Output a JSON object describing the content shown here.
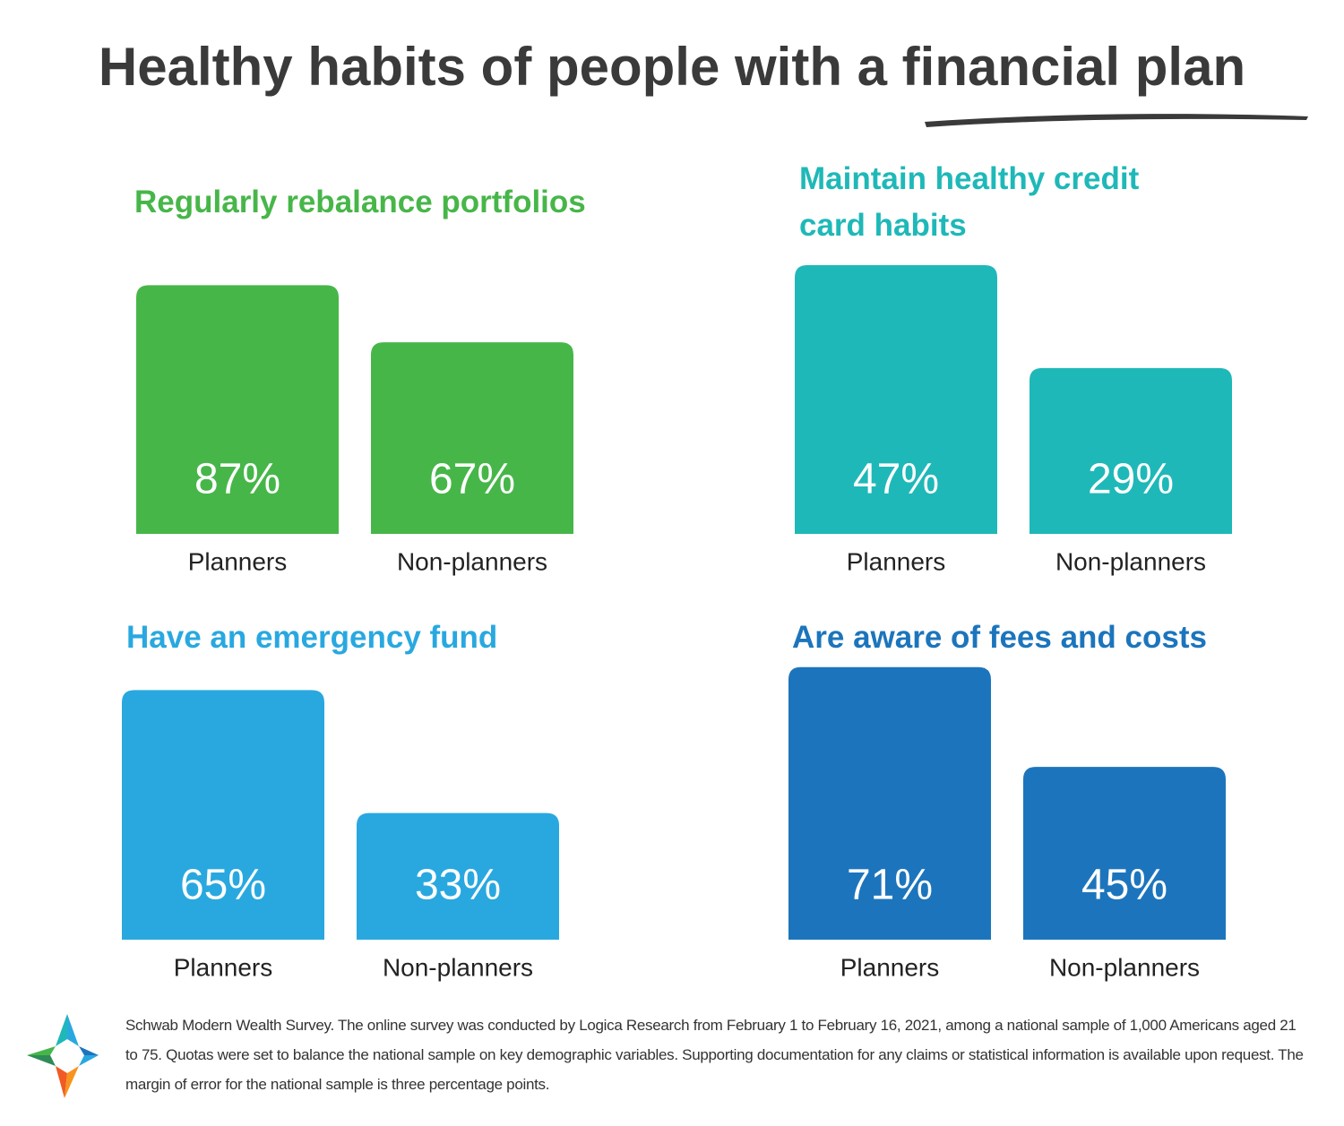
{
  "title": "Healthy habits of people with a financial plan",
  "source": "Schwab Modern Wealth Survey. The online survey was conducted by Logica Research from February 1 to February 16, 2021, among a national sample of 1,000 Americans aged 21 to 75. Quotas were set to balance the national sample on key demographic variables. Supporting documentation for any claims or statistical information is available upon request. The margin of error for the national sample is three percentage points.",
  "chart_data": [
    {
      "type": "bar",
      "title": "Regularly rebalance portfolios",
      "categories": [
        "Planners",
        "Non-planners"
      ],
      "values": [
        87,
        67
      ],
      "value_labels": [
        "87%",
        "67%"
      ],
      "color": "#47b649",
      "ylim": [
        0,
        94
      ]
    },
    {
      "type": "bar",
      "title": "Maintain healthy credit card habits",
      "categories": [
        "Planners",
        "Non-planners"
      ],
      "values": [
        47,
        29
      ],
      "value_labels": [
        "47%",
        "29%"
      ],
      "color": "#1fb8b8",
      "ylim": [
        0,
        47
      ]
    },
    {
      "type": "bar",
      "title": "Have an emergency fund",
      "categories": [
        "Planners",
        "Non-planners"
      ],
      "values": [
        65,
        33
      ],
      "value_labels": [
        "65%",
        "33%"
      ],
      "color": "#29a8e0",
      "ylim": [
        0,
        70
      ]
    },
    {
      "type": "bar",
      "title": "Are aware of fees and costs",
      "categories": [
        "Planners",
        "Non-planners"
      ],
      "values": [
        71,
        45
      ],
      "value_labels": [
        "71%",
        "45%"
      ],
      "color": "#1c75bc",
      "ylim": [
        0,
        70
      ]
    }
  ]
}
